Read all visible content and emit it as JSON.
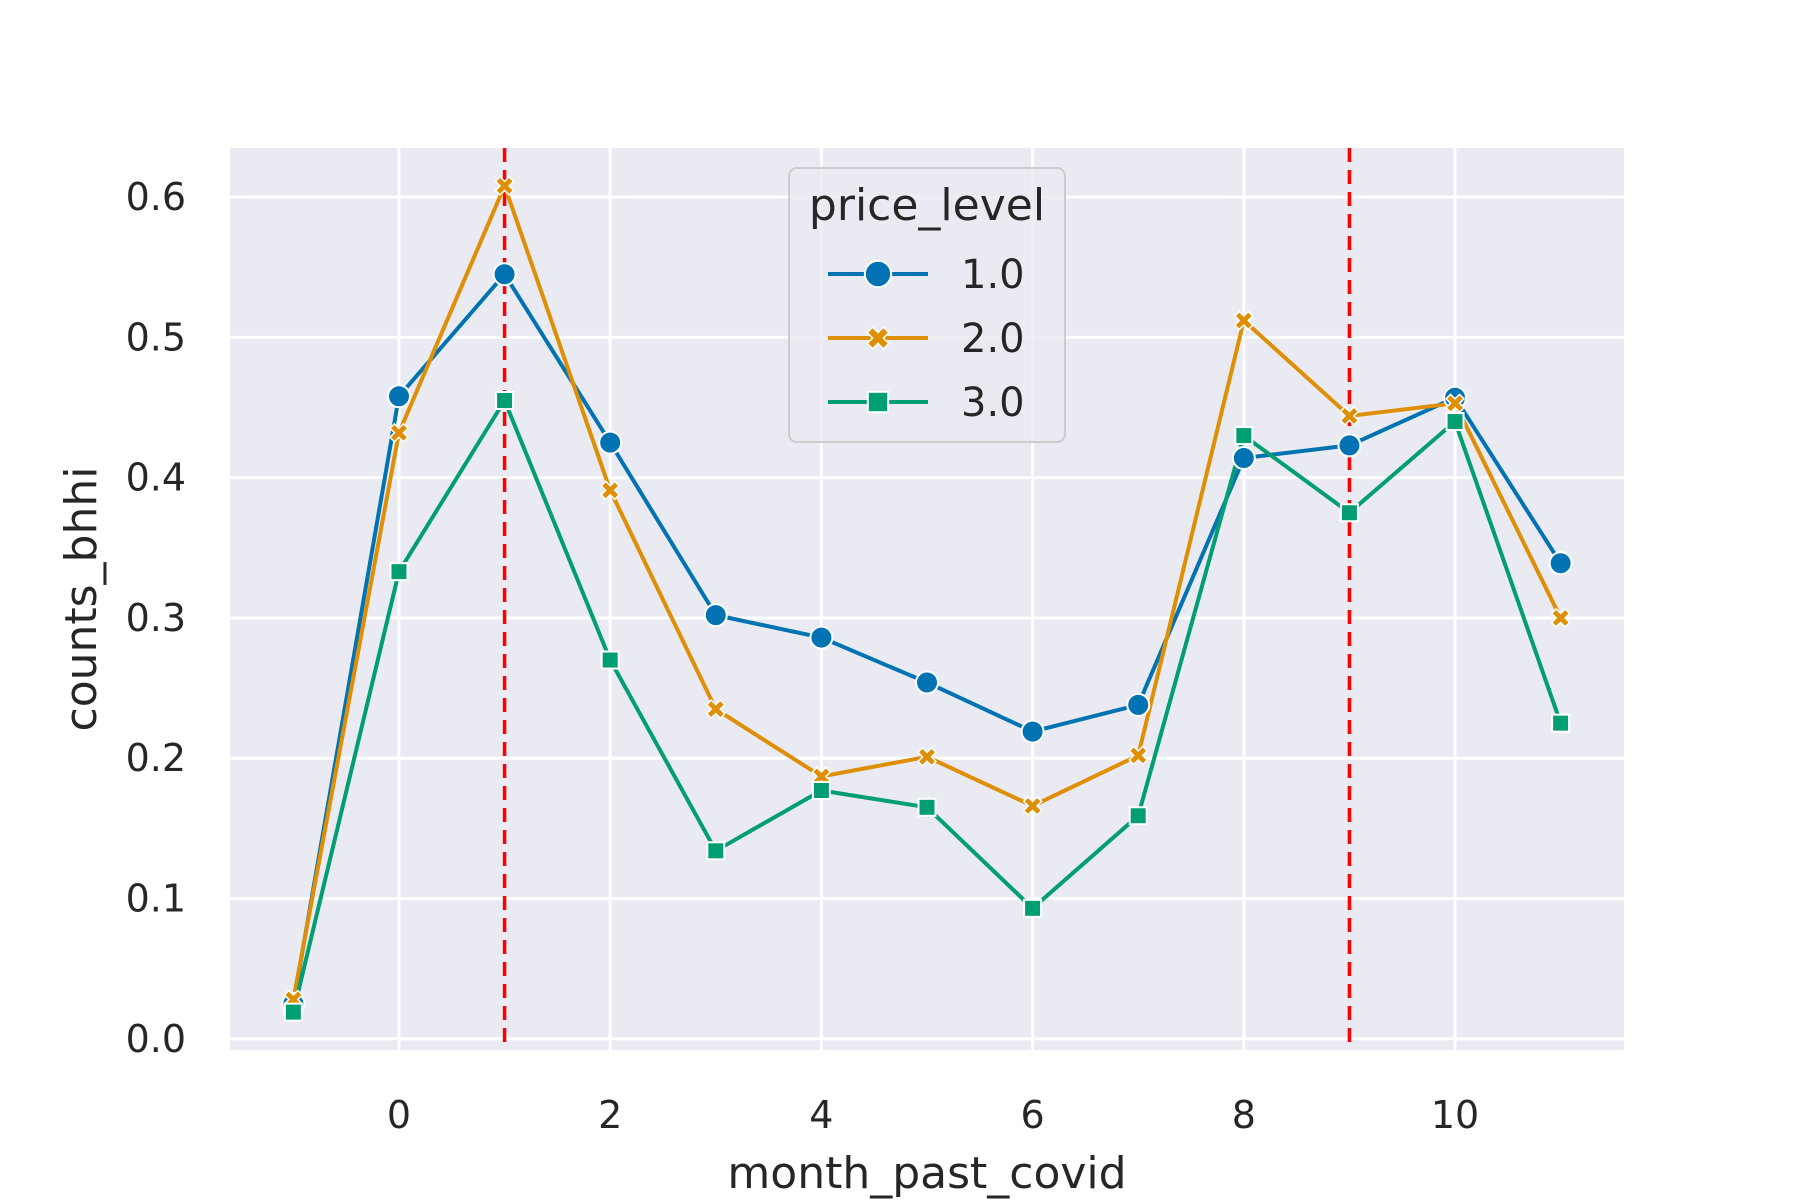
{
  "chart_data": {
    "type": "line",
    "xlabel": "month_past_covid",
    "ylabel": "counts_bhhi",
    "xlim": [
      -1.6,
      11.6
    ],
    "ylim": [
      -0.008,
      0.635
    ],
    "xticks": [
      0,
      2,
      4,
      6,
      8,
      10
    ],
    "yticks": [
      0.0,
      0.1,
      0.2,
      0.3,
      0.4,
      0.5,
      0.6
    ],
    "ytick_labels": [
      "0.0",
      "0.1",
      "0.2",
      "0.3",
      "0.4",
      "0.5",
      "0.6"
    ],
    "grid": true,
    "background_color": "#eaeaf2",
    "legend": {
      "title": "price_level",
      "placement": "upper-center"
    },
    "x": [
      -1,
      0,
      1,
      2,
      3,
      4,
      5,
      6,
      7,
      8,
      9,
      10,
      11
    ],
    "series": [
      {
        "name": "1.0",
        "color": "#0173b2",
        "marker": "circle",
        "values": [
          0.025,
          0.458,
          0.545,
          0.425,
          0.302,
          0.286,
          0.254,
          0.219,
          0.238,
          0.414,
          0.423,
          0.457,
          0.339
        ]
      },
      {
        "name": "2.0",
        "color": "#de8f05",
        "marker": "x",
        "values": [
          0.028,
          0.432,
          0.608,
          0.391,
          0.235,
          0.187,
          0.201,
          0.166,
          0.202,
          0.512,
          0.444,
          0.453,
          0.3
        ]
      },
      {
        "name": "3.0",
        "color": "#029e73",
        "marker": "square",
        "values": [
          0.019,
          0.333,
          0.455,
          0.27,
          0.134,
          0.177,
          0.165,
          0.093,
          0.159,
          0.43,
          0.375,
          0.44,
          0.225
        ]
      }
    ],
    "reference_lines": [
      {
        "axis": "x",
        "value": 1,
        "color": "#ff0000",
        "style": "dashed"
      },
      {
        "axis": "x",
        "value": 9,
        "color": "#ff0000",
        "style": "dashed"
      }
    ]
  }
}
